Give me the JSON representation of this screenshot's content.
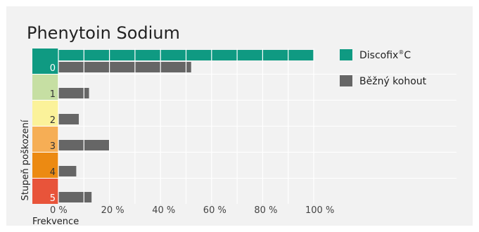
{
  "chart_data": {
    "type": "bar",
    "title": "Phenytoin Sodium",
    "xlabel": "Frekvence",
    "ylabel": "Stupeň poškození",
    "xlim": [
      0,
      100
    ],
    "x_ticks": [
      "0 %",
      "20 %",
      "40 %",
      "60 %",
      "80 %",
      "100 %"
    ],
    "categories": [
      "0",
      "1",
      "2",
      "3",
      "4",
      "5"
    ],
    "category_colors": [
      "#0f9a82",
      "#c6dfa3",
      "#fbf29a",
      "#f6ae55",
      "#ec8a12",
      "#e8543a"
    ],
    "legend_position": "right",
    "grid": true,
    "series": [
      {
        "name": "Discofix",
        "name_suffix": "C",
        "color": "#0f9a82",
        "values": [
          100,
          0,
          0,
          0,
          0,
          0
        ]
      },
      {
        "name": "Běžný kohout",
        "color": "#666666",
        "values": [
          52,
          12,
          8,
          20,
          7,
          13
        ]
      }
    ]
  }
}
